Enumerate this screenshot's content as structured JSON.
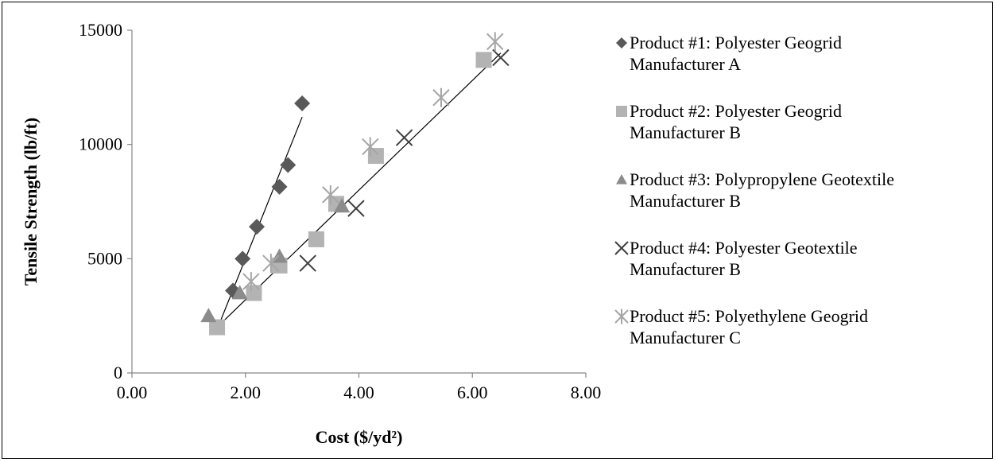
{
  "chart_data": {
    "type": "scatter",
    "title": "",
    "xlabel": "Cost ($/yd²)",
    "ylabel": "Tensile Strength (lb/ft)",
    "xlim": [
      0,
      8
    ],
    "ylim": [
      0,
      15000
    ],
    "x_ticks": [
      "0.00",
      "2.00",
      "4.00",
      "6.00",
      "8.00"
    ],
    "y_ticks": [
      "0",
      "5000",
      "10000",
      "15000"
    ],
    "grid": false,
    "legend_position": "right",
    "series": [
      {
        "name": "Product #1: Polyester Geogrid Manufacturer A",
        "legend_lines": [
          "Product #1: Polyester Geogrid",
          "Manufacturer A"
        ],
        "marker": "diamond",
        "color": "#595959",
        "points": [
          [
            1.5,
            2000
          ],
          [
            1.78,
            3600
          ],
          [
            1.95,
            5000
          ],
          [
            2.2,
            6400
          ],
          [
            2.6,
            8150
          ],
          [
            2.75,
            9100
          ],
          [
            3.0,
            11800
          ]
        ],
        "trendline": [
          [
            1.5,
            1900
          ],
          [
            3.0,
            11200
          ]
        ]
      },
      {
        "name": "Product #2: Polyester Geogrid Manufacturer B",
        "legend_lines": [
          "Product #2: Polyester Geogrid",
          "Manufacturer B"
        ],
        "marker": "square",
        "color": "#b3b3b3",
        "points": [
          [
            1.5,
            2000
          ],
          [
            2.15,
            3500
          ],
          [
            2.6,
            4700
          ],
          [
            3.25,
            5850
          ],
          [
            3.6,
            7400
          ],
          [
            4.3,
            9500
          ],
          [
            6.2,
            13700
          ]
        ],
        "trendline": null
      },
      {
        "name": "Product #3: Polypropylene Geotextile Manufacturer B",
        "legend_lines": [
          "Product #3: Polypropylene Geotextile",
          "Manufacturer B"
        ],
        "marker": "triangle",
        "color": "#8c8c8c",
        "points": [
          [
            1.35,
            2500
          ],
          [
            1.9,
            3500
          ],
          [
            2.6,
            5100
          ],
          [
            3.7,
            7300
          ]
        ],
        "trendline": null
      },
      {
        "name": "Product #4: Polyester Geotextile Manufacturer B",
        "legend_lines": [
          "Product #4: Polyester Geotextile",
          "Manufacturer B"
        ],
        "marker": "x",
        "color": "#404040",
        "points": [
          [
            3.1,
            4800
          ],
          [
            3.95,
            7200
          ],
          [
            4.8,
            10300
          ],
          [
            6.5,
            13800
          ]
        ],
        "trendline": [
          [
            1.5,
            2000
          ],
          [
            6.5,
            14000
          ]
        ]
      },
      {
        "name": "Product #5: Polyethylene Geogrid Manufacturer C",
        "legend_lines": [
          "Product #5: Polyethylene Geogrid",
          "Manufacturer C"
        ],
        "marker": "asterisk",
        "color": "#a6a6a6",
        "points": [
          [
            2.1,
            4000
          ],
          [
            2.45,
            4800
          ],
          [
            3.5,
            7800
          ],
          [
            4.2,
            9900
          ],
          [
            5.45,
            12050
          ],
          [
            6.4,
            14500
          ]
        ],
        "trendline": null
      }
    ]
  }
}
